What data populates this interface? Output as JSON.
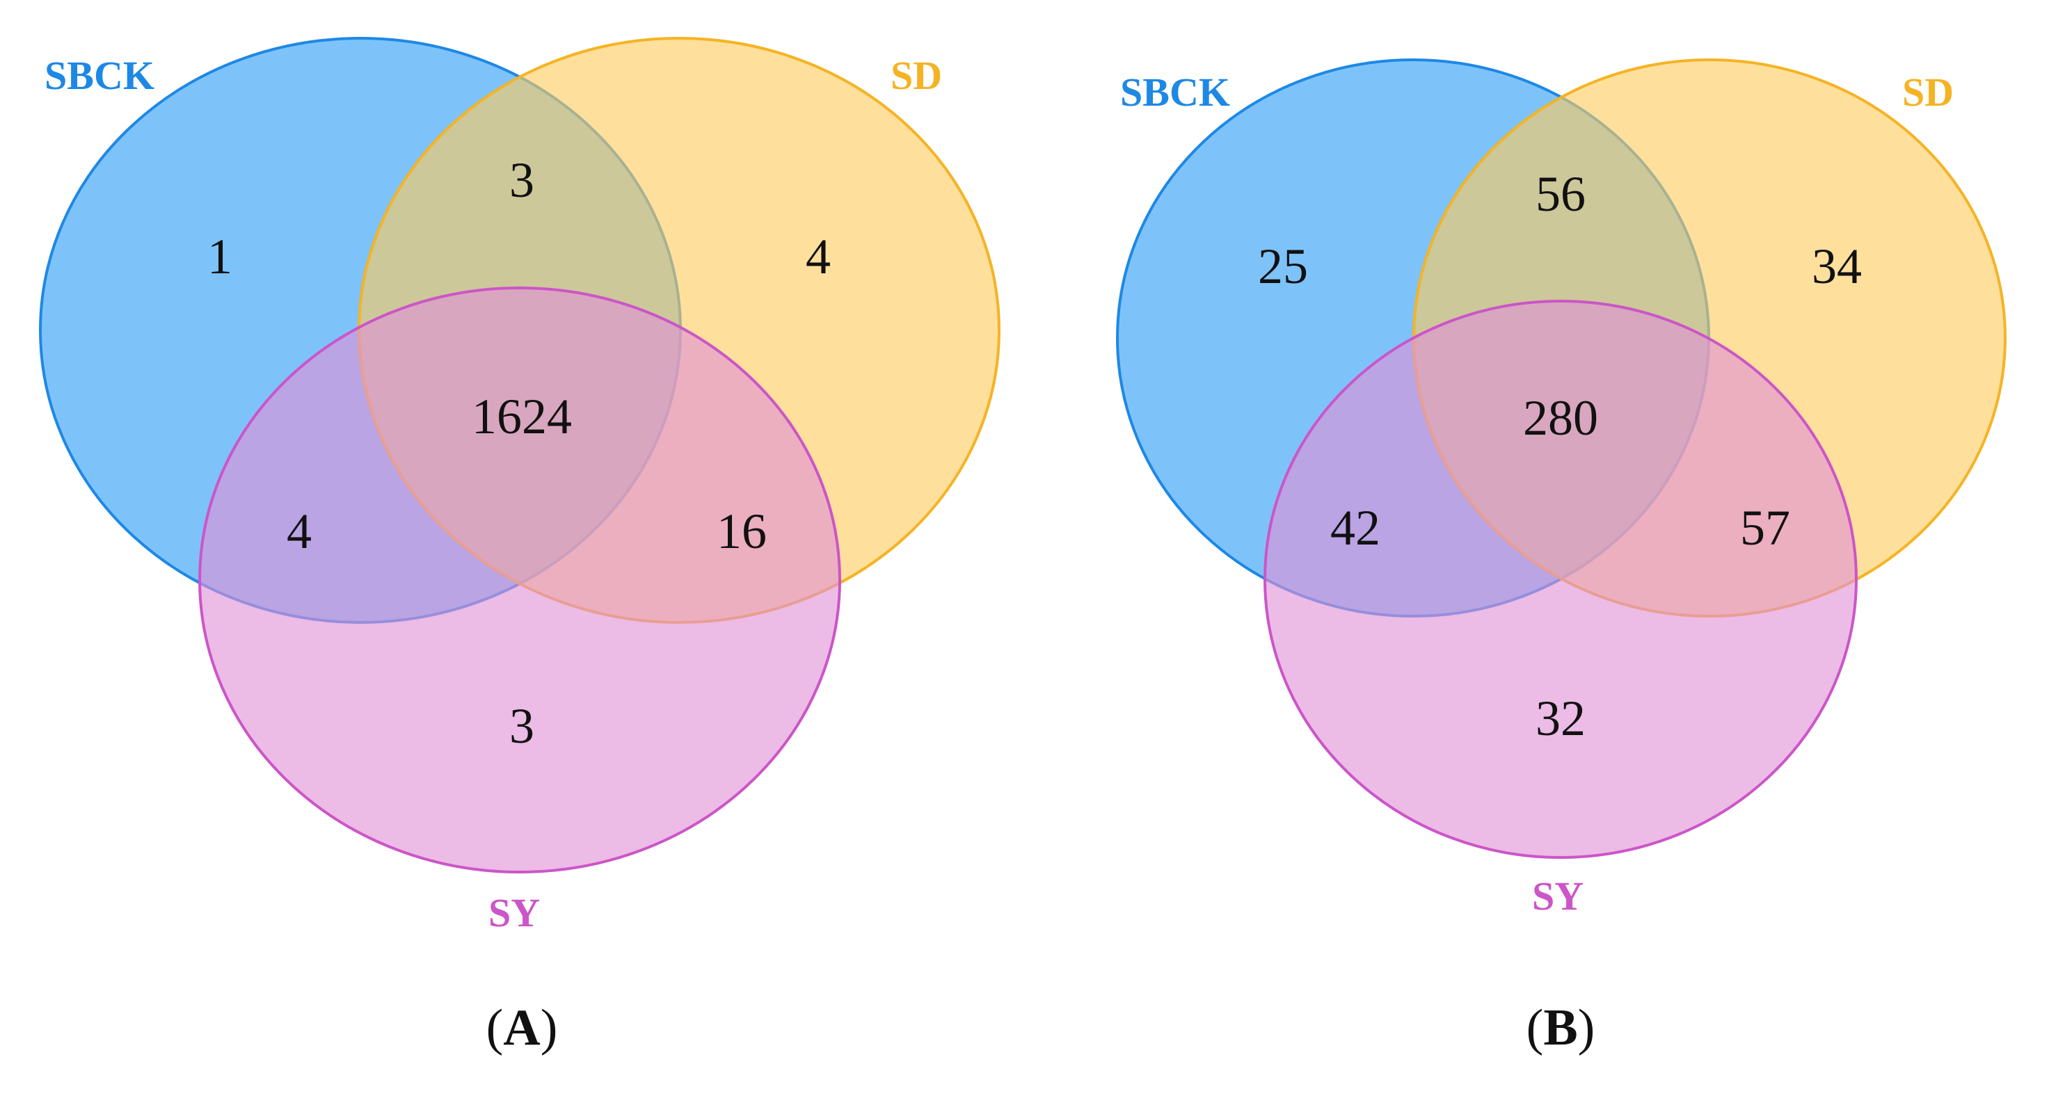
{
  "colors": {
    "SBCK": "#1e88e5",
    "SD": "#f5b324",
    "SY": "#cc55c8",
    "text": "#111111"
  },
  "panels": [
    {
      "caption_open": "(",
      "caption_letter": "A",
      "caption_close": ")",
      "sets": {
        "SBCK": "SBCK",
        "SD": "SD",
        "SY": "SY"
      },
      "regions": {
        "SBCK_only": "1",
        "SD_only": "4",
        "SY_only": "3",
        "SBCK_SD": "3",
        "SBCK_SY": "4",
        "SD_SY": "16",
        "all": "1624"
      }
    },
    {
      "caption_open": "(",
      "caption_letter": "B",
      "caption_close": ")",
      "sets": {
        "SBCK": "SBCK",
        "SD": "SD",
        "SY": "SY"
      },
      "regions": {
        "SBCK_only": "25",
        "SD_only": "34",
        "SY_only": "32",
        "SBCK_SD": "56",
        "SBCK_SY": "42",
        "SD_SY": "57",
        "all": "280"
      }
    }
  ]
}
